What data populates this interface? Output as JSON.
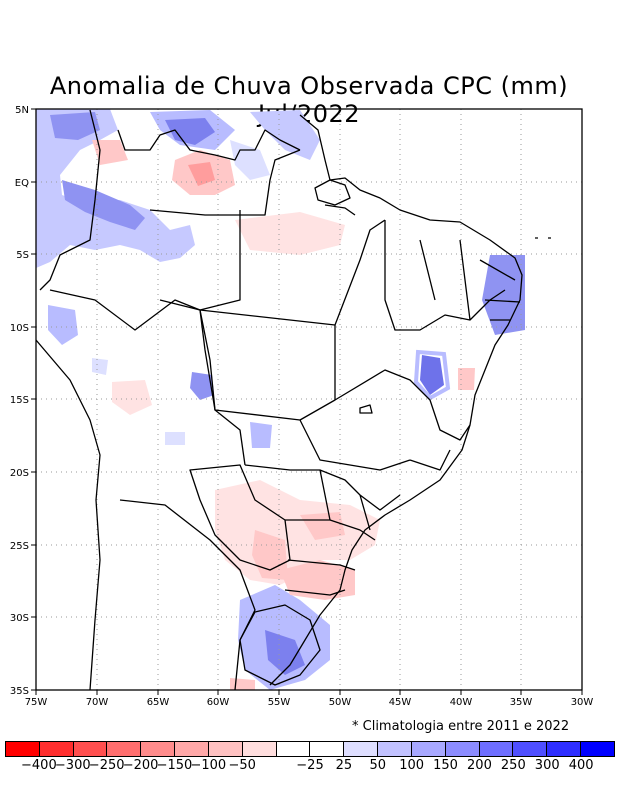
{
  "title": "Anomalia de Chuva Observada CPC (mm) Jul/2022",
  "note": "* Climatologia entre 2011 e 2022",
  "axes": {
    "lon_labels": [
      "75W",
      "70W",
      "65W",
      "60W",
      "55W",
      "50W",
      "45W",
      "40W",
      "35W",
      "30W"
    ],
    "lat_labels": [
      "5N",
      "EQ",
      "5S",
      "10S",
      "15S",
      "20S",
      "25S",
      "30S",
      "35S"
    ]
  },
  "colorbar": {
    "colors": [
      "#ff0000",
      "#ff2e2e",
      "#ff4f4f",
      "#ff6e6e",
      "#ff8c8c",
      "#ffa8a8",
      "#ffc2c2",
      "#ffdede",
      "#ffffff",
      "#ffffff",
      "#dedeff",
      "#c2c2ff",
      "#a8a8ff",
      "#8c8cff",
      "#6e6eff",
      "#4f4fff",
      "#2e2eff",
      "#0000ff"
    ],
    "labels": [
      "−400",
      "−300",
      "−250",
      "−200",
      "−150",
      "−100",
      "−50",
      "−25",
      "25",
      "50",
      "100",
      "150",
      "200",
      "250",
      "300",
      "400"
    ]
  },
  "legend_colors": {
    "pos_light": "#dde0ff",
    "pos_mid": "#b8bcff",
    "pos_dark": "#8a8ff5",
    "pos_strong": "#5f62e8",
    "neg_light": "#ffe3e3",
    "neg_mid": "#ffc8c8",
    "neg_dark": "#ff9d9d"
  }
}
